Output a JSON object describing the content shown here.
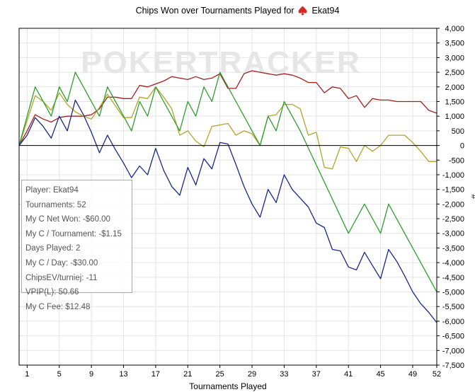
{
  "title": {
    "text": "Chips Won over Tournaments Played for",
    "player": "Ekat94",
    "icon": "spade-icon"
  },
  "watermark": "POKERTRACKER",
  "info_box": [
    "Player: Ekat94",
    "Tournaments: 52",
    "My C Net Won: -$60.00",
    "My C / Tournament: -$1.15",
    "Days Played: 2",
    "My C / Day: -$30.00",
    "ChipsEV/turniej: -11",
    "VPIP(L): 50.66",
    "My C Fee: $12.48"
  ],
  "chart_data": {
    "type": "line",
    "xlabel": "Tournaments Played",
    "ylabel": "#",
    "xlim": [
      0,
      52
    ],
    "ylim": [
      -7500,
      4000
    ],
    "x_ticks": [
      1,
      5,
      9,
      13,
      17,
      21,
      25,
      29,
      33,
      37,
      41,
      45,
      49,
      52
    ],
    "y_ticks": [
      4000,
      3500,
      3000,
      2500,
      2000,
      1500,
      1000,
      500,
      0,
      -500,
      -1000,
      -1500,
      -2000,
      -2500,
      -3000,
      -3500,
      -4000,
      -4500,
      -5000,
      -5500,
      -6000,
      -6500,
      -7000,
      -7500
    ],
    "y_tick_labels": [
      "4,000",
      "3,500",
      "3,000",
      "2,500",
      "2,000",
      "1,500",
      "1,000",
      "500",
      "0",
      "-500",
      "-1,000",
      "-1,500",
      "-2,000",
      "-2,500",
      "-3,000",
      "-3,500",
      "-4,000",
      "-4,500",
      "-5,000",
      "-5,500",
      "-6,000",
      "-6,500",
      "-7,000",
      "-7,500"
    ],
    "grid": true,
    "series": [
      {
        "color": "#a0201f",
        "points": [
          [
            0,
            0
          ],
          [
            1,
            500
          ],
          [
            2,
            1050
          ],
          [
            3,
            900
          ],
          [
            4,
            800
          ],
          [
            5,
            950
          ],
          [
            6,
            1000
          ],
          [
            7,
            1000
          ],
          [
            8,
            1000
          ],
          [
            9,
            1050
          ],
          [
            10,
            1250
          ],
          [
            11,
            1650
          ],
          [
            12,
            1650
          ],
          [
            13,
            1600
          ],
          [
            14,
            1600
          ],
          [
            15,
            2050
          ],
          [
            16,
            2000
          ],
          [
            17,
            2100
          ],
          [
            18,
            2200
          ],
          [
            19,
            2350
          ],
          [
            20,
            2300
          ],
          [
            21,
            2250
          ],
          [
            22,
            2350
          ],
          [
            23,
            2250
          ],
          [
            24,
            2300
          ],
          [
            25,
            2450
          ],
          [
            26,
            1950
          ],
          [
            27,
            1950
          ],
          [
            28,
            2450
          ],
          [
            29,
            2550
          ],
          [
            30,
            2500
          ],
          [
            31,
            2450
          ],
          [
            32,
            2400
          ],
          [
            33,
            2450
          ],
          [
            34,
            2400
          ],
          [
            35,
            2300
          ],
          [
            36,
            2150
          ],
          [
            37,
            2150
          ],
          [
            38,
            1800
          ],
          [
            39,
            2000
          ],
          [
            40,
            1950
          ],
          [
            41,
            1600
          ],
          [
            42,
            1700
          ],
          [
            43,
            1300
          ],
          [
            44,
            1600
          ],
          [
            45,
            1550
          ],
          [
            46,
            1550
          ],
          [
            47,
            1500
          ],
          [
            48,
            1500
          ],
          [
            49,
            1500
          ],
          [
            50,
            1500
          ],
          [
            51,
            1200
          ],
          [
            52,
            1100
          ]
        ]
      },
      {
        "color": "#b2a628",
        "points": [
          [
            0,
            0
          ],
          [
            2,
            1700
          ],
          [
            3,
            1500
          ],
          [
            4,
            1200
          ],
          [
            5,
            1800
          ],
          [
            6,
            1400
          ],
          [
            7,
            1150
          ],
          [
            8,
            1000
          ],
          [
            9,
            900
          ],
          [
            10,
            1300
          ],
          [
            11,
            1750
          ],
          [
            12,
            1350
          ],
          [
            13,
            950
          ],
          [
            14,
            950
          ],
          [
            15,
            1650
          ],
          [
            16,
            1600
          ],
          [
            17,
            2000
          ],
          [
            18,
            1650
          ],
          [
            19,
            1250
          ],
          [
            20,
            350
          ],
          [
            21,
            500
          ],
          [
            22,
            150
          ],
          [
            23,
            -50
          ],
          [
            24,
            650
          ],
          [
            25,
            700
          ],
          [
            26,
            750
          ],
          [
            27,
            350
          ],
          [
            28,
            500
          ],
          [
            29,
            400
          ],
          [
            30,
            0
          ],
          [
            31,
            1000
          ],
          [
            32,
            1050
          ],
          [
            33,
            1400
          ],
          [
            34,
            1400
          ],
          [
            35,
            1250
          ],
          [
            36,
            350
          ],
          [
            37,
            450
          ],
          [
            38,
            -750
          ],
          [
            39,
            -800
          ],
          [
            40,
            -50
          ],
          [
            41,
            -100
          ],
          [
            42,
            -550
          ],
          [
            43,
            0
          ],
          [
            44,
            -200
          ],
          [
            45,
            0
          ],
          [
            46,
            350
          ],
          [
            47,
            350
          ],
          [
            48,
            350
          ],
          [
            49,
            100
          ],
          [
            50,
            -200
          ],
          [
            51,
            -550
          ],
          [
            52,
            -550
          ]
        ]
      },
      {
        "color": "#2e9e2e",
        "points": [
          [
            0,
            0
          ],
          [
            2,
            2000
          ],
          [
            4,
            1000
          ],
          [
            5,
            2000
          ],
          [
            6,
            1500
          ],
          [
            7,
            2500
          ],
          [
            8,
            2000
          ],
          [
            9,
            1500
          ],
          [
            10,
            1000
          ],
          [
            11,
            2000
          ],
          [
            12,
            1500
          ],
          [
            13,
            1000
          ],
          [
            14,
            500
          ],
          [
            15,
            1500
          ],
          [
            16,
            1000
          ],
          [
            17,
            2000
          ],
          [
            18,
            1500
          ],
          [
            19,
            1000
          ],
          [
            20,
            500
          ],
          [
            21,
            1500
          ],
          [
            22,
            1000
          ],
          [
            23,
            2000
          ],
          [
            24,
            1500
          ],
          [
            25,
            2500
          ],
          [
            26,
            2000
          ],
          [
            27,
            1500
          ],
          [
            28,
            1000
          ],
          [
            29,
            500
          ],
          [
            30,
            0
          ],
          [
            31,
            1000
          ],
          [
            32,
            500
          ],
          [
            33,
            1500
          ],
          [
            34,
            1000
          ],
          [
            35,
            500
          ],
          [
            41,
            -3000
          ],
          [
            43,
            -2000
          ],
          [
            45,
            -3000
          ],
          [
            46,
            -2000
          ],
          [
            52,
            -5000
          ]
        ]
      },
      {
        "color": "#1b2787",
        "points": [
          [
            0,
            0
          ],
          [
            1,
            350
          ],
          [
            2,
            950
          ],
          [
            3,
            650
          ],
          [
            4,
            250
          ],
          [
            5,
            1000
          ],
          [
            6,
            500
          ],
          [
            7,
            1550
          ],
          [
            8,
            1050
          ],
          [
            9,
            450
          ],
          [
            10,
            -250
          ],
          [
            11,
            350
          ],
          [
            12,
            -150
          ],
          [
            13,
            -600
          ],
          [
            14,
            -1100
          ],
          [
            15,
            -700
          ],
          [
            16,
            -1000
          ],
          [
            17,
            -100
          ],
          [
            18,
            -850
          ],
          [
            19,
            -1400
          ],
          [
            20,
            -1700
          ],
          [
            21,
            -750
          ],
          [
            22,
            -1350
          ],
          [
            23,
            -450
          ],
          [
            24,
            -800
          ],
          [
            25,
            100
          ],
          [
            26,
            50
          ],
          [
            27,
            -650
          ],
          [
            28,
            -1400
          ],
          [
            29,
            -2000
          ],
          [
            30,
            -2450
          ],
          [
            31,
            -1500
          ],
          [
            32,
            -1950
          ],
          [
            33,
            -1000
          ],
          [
            34,
            -1500
          ],
          [
            35,
            -1800
          ],
          [
            36,
            -2100
          ],
          [
            37,
            -2650
          ],
          [
            38,
            -2800
          ],
          [
            39,
            -3550
          ],
          [
            40,
            -3600
          ],
          [
            41,
            -4150
          ],
          [
            42,
            -4250
          ],
          [
            43,
            -3650
          ],
          [
            44,
            -4100
          ],
          [
            45,
            -4550
          ],
          [
            46,
            -3550
          ],
          [
            47,
            -3950
          ],
          [
            48,
            -4450
          ],
          [
            49,
            -5000
          ],
          [
            50,
            -5400
          ],
          [
            51,
            -5700
          ],
          [
            52,
            -6050
          ]
        ]
      }
    ]
  }
}
